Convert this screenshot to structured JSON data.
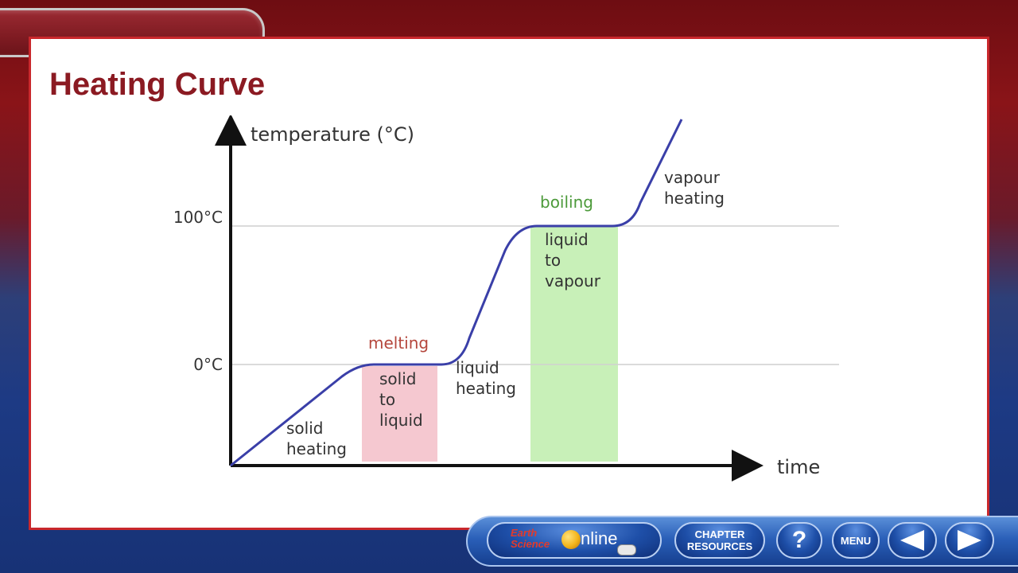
{
  "slide": {
    "title": "Heating Curve"
  },
  "diagram": {
    "y_axis_label": "temperature (°C)",
    "x_axis_label": "time",
    "y_tick_labels": [
      "0°C",
      "100°C"
    ],
    "phase_labels": {
      "solid_heating": [
        "solid",
        "heating"
      ],
      "melting": "melting",
      "solid_to_liquid": [
        "solid",
        "to",
        "liquid"
      ],
      "liquid_heating": [
        "liquid",
        "heating"
      ],
      "boiling": "boiling",
      "liquid_to_vapour": [
        "liquid",
        "to",
        "vapour"
      ],
      "vapour_heating": [
        "vapour",
        "heating"
      ]
    },
    "colors": {
      "curve": "#3a3fa8",
      "melting_label": "#b5473d",
      "boiling_label": "#4c9a3a",
      "solid_to_liquid_fill": "#f5c8d0",
      "liquid_to_vapour_fill": "#c8f0b8"
    }
  },
  "nav": {
    "logo_earth": "Earth",
    "logo_science": "Science",
    "logo_online": "nline",
    "chapter_line1": "CHAPTER",
    "chapter_line2": "RESOURCES",
    "help": "?",
    "menu": "MENU",
    "prev_icon": "left-arrow-icon",
    "next_icon": "right-arrow-icon"
  }
}
